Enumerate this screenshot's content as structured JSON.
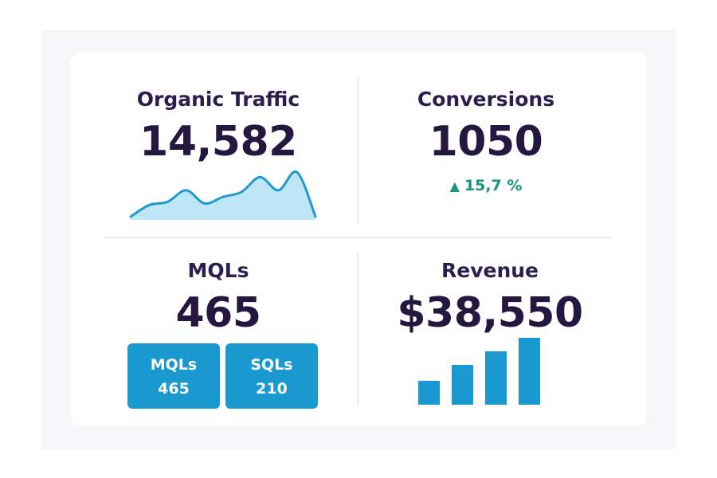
{
  "cards": {
    "organic": {
      "label": "Organic Traffic",
      "value": "14,582"
    },
    "conversions": {
      "label": "Conversions",
      "value": "1050",
      "delta": "15,7 %"
    },
    "mqls": {
      "label": "MQLs",
      "value": "465",
      "boxes": [
        {
          "label": "MQLs",
          "value": "465"
        },
        {
          "label": "SQLs",
          "value": "210"
        }
      ]
    },
    "revenue": {
      "label": "Revenue",
      "value": "$38,550"
    }
  },
  "colors": {
    "title": "#2b1d4d",
    "value": "#261741",
    "accent": "#1a99d0",
    "line": "#1e9ad3",
    "area": "#bfe6f6",
    "positive": "#17957e"
  },
  "chart_data": [
    {
      "type": "area",
      "x": [
        0,
        1,
        2,
        3,
        4,
        5,
        6,
        7,
        8,
        9,
        10
      ],
      "values": [
        2,
        9,
        11,
        18,
        10,
        14,
        17,
        26,
        18,
        29,
        2
      ],
      "ylim": [
        0,
        32
      ],
      "grid": false
    },
    {
      "type": "bar",
      "categories": [
        "1",
        "2",
        "3",
        "4"
      ],
      "values": [
        30,
        50,
        67,
        84
      ],
      "ylim": [
        0,
        90
      ],
      "grid": false
    }
  ]
}
